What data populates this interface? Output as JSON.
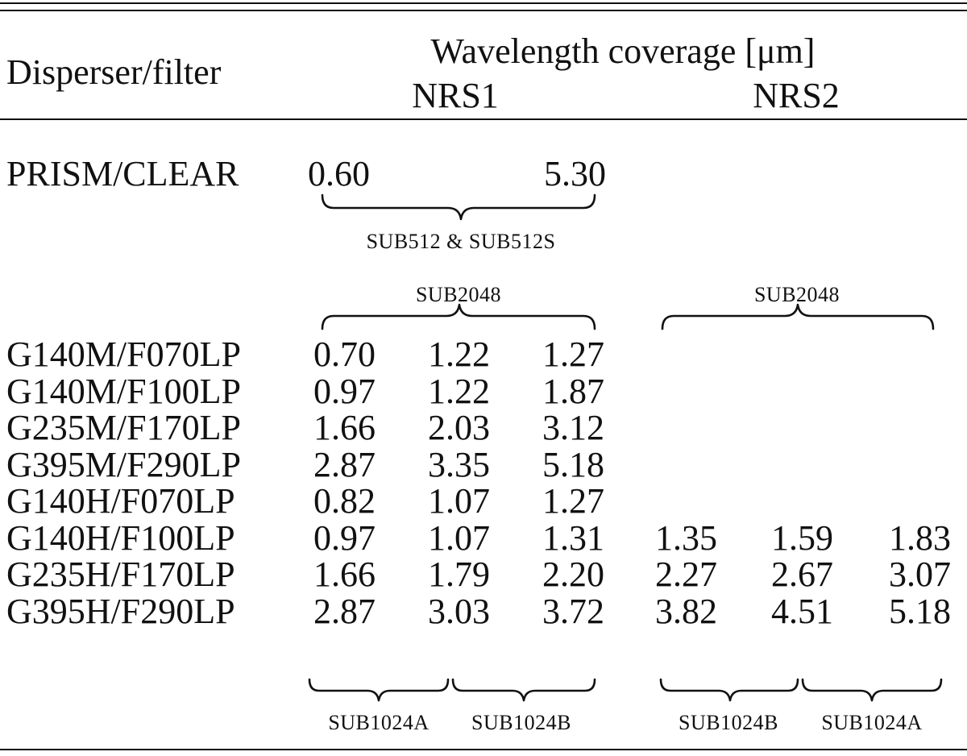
{
  "table": {
    "header": {
      "disperser_label": "Disperser/filter",
      "coverage_label": "Wavelength coverage [μm]",
      "nrs1_label": "NRS1",
      "nrs2_label": "NRS2"
    },
    "prism": {
      "name": "PRISM/CLEAR",
      "nrs1": [
        "0.60",
        "5.30"
      ],
      "subarray": "SUB512 & SUB512S"
    },
    "subarray_above": {
      "nrs1": "SUB2048",
      "nrs2": "SUB2048"
    },
    "rows": [
      {
        "name": "G140M/F070LP",
        "nrs1": [
          "0.70",
          "1.22",
          "1.27"
        ],
        "nrs2": [
          "",
          "",
          ""
        ]
      },
      {
        "name": "G140M/F100LP",
        "nrs1": [
          "0.97",
          "1.22",
          "1.87"
        ],
        "nrs2": [
          "",
          "",
          ""
        ]
      },
      {
        "name": "G235M/F170LP",
        "nrs1": [
          "1.66",
          "2.03",
          "3.12"
        ],
        "nrs2": [
          "",
          "",
          ""
        ]
      },
      {
        "name": "G395M/F290LP",
        "nrs1": [
          "2.87",
          "3.35",
          "5.18"
        ],
        "nrs2": [
          "",
          "",
          ""
        ]
      },
      {
        "name": "G140H/F070LP",
        "nrs1": [
          "0.82",
          "1.07",
          "1.27"
        ],
        "nrs2": [
          "",
          "",
          ""
        ]
      },
      {
        "name": "G140H/F100LP",
        "nrs1": [
          "0.97",
          "1.07",
          "1.31"
        ],
        "nrs2": [
          "1.35",
          "1.59",
          "1.83"
        ]
      },
      {
        "name": "G235H/F170LP",
        "nrs1": [
          "1.66",
          "1.79",
          "2.20"
        ],
        "nrs2": [
          "2.27",
          "2.67",
          "3.07"
        ]
      },
      {
        "name": "G395H/F290LP",
        "nrs1": [
          "2.87",
          "3.03",
          "3.72"
        ],
        "nrs2": [
          "3.82",
          "4.51",
          "5.18"
        ]
      }
    ],
    "subarray_below": {
      "nrs1_left": "SUB1024A",
      "nrs1_right": "SUB1024B",
      "nrs2_left": "SUB1024B",
      "nrs2_right": "SUB1024A"
    }
  }
}
